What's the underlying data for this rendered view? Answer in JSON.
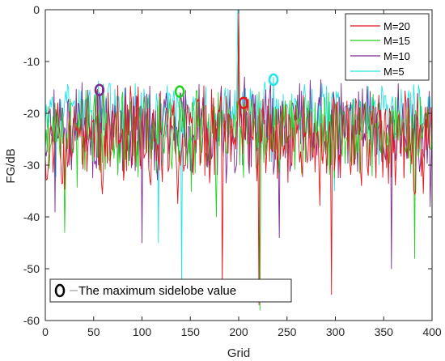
{
  "chart_data": {
    "type": "line",
    "title": "",
    "xlabel": "Grid",
    "ylabel": "FG/dB",
    "xlim": [
      0,
      400
    ],
    "ylim": [
      -60,
      0
    ],
    "xticks": [
      0,
      50,
      100,
      150,
      200,
      250,
      300,
      350,
      400
    ],
    "yticks": [
      0,
      -10,
      -20,
      -30,
      -40,
      -50,
      -60
    ],
    "xtick_labels": [
      "0",
      "50",
      "100",
      "150",
      "200",
      "250",
      "300",
      "350",
      "400"
    ],
    "ytick_labels": [
      "0",
      "-10",
      "-20",
      "-30",
      "-40",
      "-50",
      "-60"
    ],
    "grid": false,
    "legend_position": "top-right",
    "series": [
      {
        "name": "M=20",
        "color": "#e8141b",
        "base": -25,
        "spread": 9,
        "seed": 11,
        "points": [
          [
            200,
            0
          ],
          [
            183,
            -53
          ],
          [
            296,
            -55
          ],
          [
            205,
            -18
          ],
          [
            221,
            -57
          ],
          [
            90,
            -30
          ]
        ]
      },
      {
        "name": "M=15",
        "color": "#22d11f",
        "base": -23.5,
        "spread": 8,
        "seed": 23,
        "points": [
          [
            200,
            -1
          ],
          [
            222,
            -58
          ],
          [
            139,
            -16
          ],
          [
            20,
            -43
          ],
          [
            280,
            -26
          ],
          [
            382,
            -48
          ]
        ]
      },
      {
        "name": "M=10",
        "color": "#7d2a94",
        "base": -23,
        "spread": 9,
        "seed": 37,
        "points": [
          [
            200,
            -2
          ],
          [
            56,
            -16
          ],
          [
            100,
            -45
          ],
          [
            170,
            -30
          ],
          [
            358,
            -50
          ],
          [
            242,
            -44
          ],
          [
            398,
            -38
          ]
        ]
      },
      {
        "name": "M=5",
        "color": "#1ee5e8",
        "base": -20,
        "spread": 6,
        "seed": 53,
        "points": [
          [
            199,
            0
          ],
          [
            236,
            -13
          ],
          [
            117,
            -45
          ],
          [
            141,
            -54
          ],
          [
            345,
            -30
          ]
        ]
      }
    ],
    "markers": [
      {
        "series": "M=10",
        "x": 56,
        "y": -15.5
      },
      {
        "series": "M=15",
        "x": 139,
        "y": -15.8
      },
      {
        "series": "M=20",
        "x": 205,
        "y": -18
      },
      {
        "series": "M=5",
        "x": 236,
        "y": -13.5
      }
    ],
    "annotation": {
      "label": "The maximum sidelobe value",
      "marker_color": "#000000"
    }
  }
}
